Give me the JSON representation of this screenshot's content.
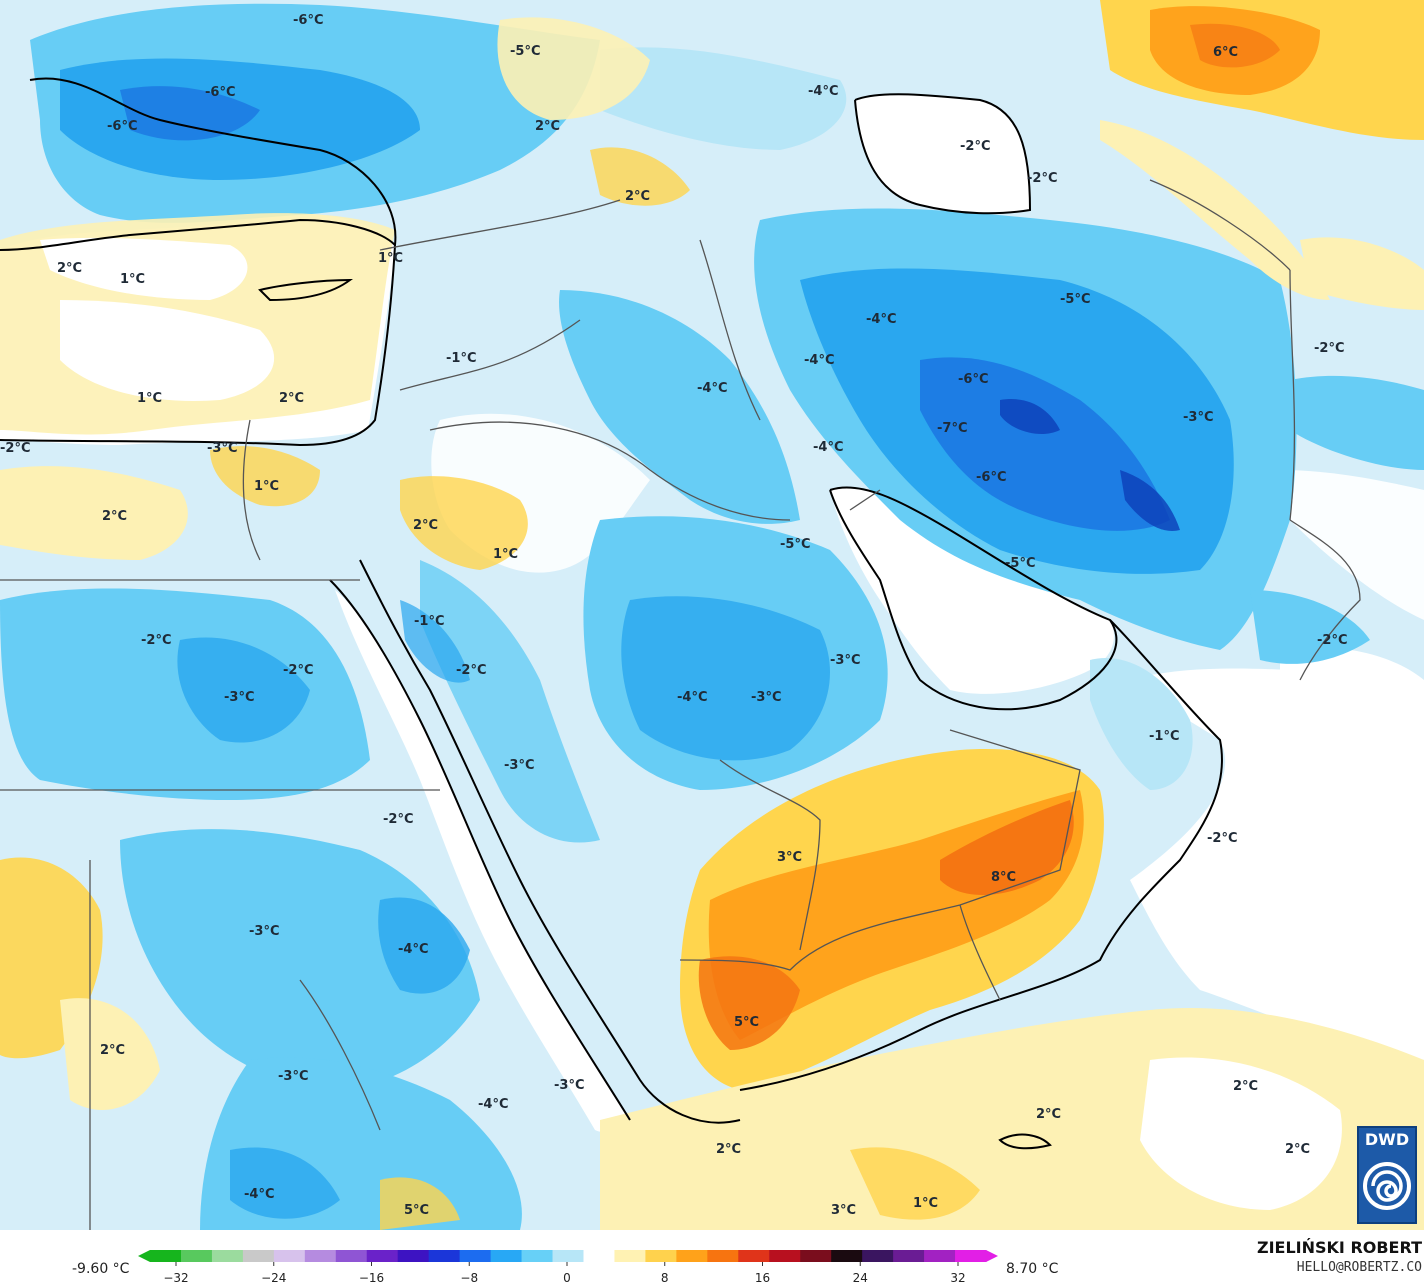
{
  "map": {
    "labels": [
      {
        "text": "-6°C"
      },
      {
        "text": "-5°C"
      },
      {
        "text": "-6°C"
      },
      {
        "text": "-6°C"
      },
      {
        "text": "2°C"
      },
      {
        "text": "2°C"
      },
      {
        "text": "-4°C"
      },
      {
        "text": "-2°C"
      },
      {
        "text": "-2°C"
      },
      {
        "text": "6°C"
      },
      {
        "text": "2°C"
      },
      {
        "text": "1°C"
      },
      {
        "text": "1°C"
      },
      {
        "text": "-1°C"
      },
      {
        "text": "1°C"
      },
      {
        "text": "2°C"
      },
      {
        "text": "-5°C"
      },
      {
        "text": "-4°C"
      },
      {
        "text": "-4°C"
      },
      {
        "text": "-6°C"
      },
      {
        "text": "-2°C"
      },
      {
        "text": "-2°C"
      },
      {
        "text": "-4°C"
      },
      {
        "text": "-3°C"
      },
      {
        "text": "-7°C"
      },
      {
        "text": "-4°C"
      },
      {
        "text": "-3°C"
      },
      {
        "text": "1°C"
      },
      {
        "text": "-6°C"
      },
      {
        "text": "2°C"
      },
      {
        "text": "2°C"
      },
      {
        "text": "1°C"
      },
      {
        "text": "-5°C"
      },
      {
        "text": "-5°C"
      },
      {
        "text": "-1°C"
      },
      {
        "text": "-2°C"
      },
      {
        "text": "-2°C"
      },
      {
        "text": "-2°C"
      },
      {
        "text": "-3°C"
      },
      {
        "text": "-2°C"
      },
      {
        "text": "-4°C"
      },
      {
        "text": "-3°C"
      },
      {
        "text": "-3°C"
      },
      {
        "text": "-1°C"
      },
      {
        "text": "-3°C"
      },
      {
        "text": "-2°C"
      },
      {
        "text": "-2°C"
      },
      {
        "text": "3°C"
      },
      {
        "text": "8°C"
      },
      {
        "text": "-3°C"
      },
      {
        "text": "-4°C"
      },
      {
        "text": "5°C"
      },
      {
        "text": "2°C"
      },
      {
        "text": "-3°C"
      },
      {
        "text": "-3°C"
      },
      {
        "text": "-4°C"
      },
      {
        "text": "2°C"
      },
      {
        "text": "2°C"
      },
      {
        "text": "2°C"
      },
      {
        "text": "2°C"
      },
      {
        "text": "-4°C"
      },
      {
        "text": "5°C"
      },
      {
        "text": "3°C"
      },
      {
        "text": "1°C"
      }
    ]
  },
  "legend": {
    "min_value": "-9.60 °C",
    "max_value": "8.70 °C",
    "ticks": [
      "−32",
      "−24",
      "−16",
      "−8",
      "0",
      "8",
      "16",
      "24",
      "32"
    ],
    "colors": [
      "#16b51d",
      "#58c95e",
      "#9bdb9e",
      "#c9c9c9",
      "#d7c2ec",
      "#b58be0",
      "#8f55d4",
      "#6a22c9",
      "#3d13c2",
      "#1b36d9",
      "#1c6cf0",
      "#28a8f5",
      "#67d0f7",
      "#b7e6f7",
      "#ffffff",
      "#fff2b3",
      "#ffd24d",
      "#ffa21a",
      "#f77410",
      "#e0341a",
      "#b8101f",
      "#7a0d1d",
      "#1a0a10",
      "#3a1560",
      "#6a1c94",
      "#a222c2",
      "#e21fe6"
    ]
  },
  "footer": {
    "author": "ZIELIŃSKI ROBERT",
    "email": "HELLO@ROBERTZ.CO"
  },
  "logo": {
    "text": "DWD"
  },
  "colors": {
    "sea_neutral": "#ffffff",
    "land_light_blue": "#d4eef9",
    "blue_mid": "#67cdf5",
    "blue_strong": "#2aa7ef",
    "blue_deep": "#1a6fe0",
    "yellow_light": "#fdf1b4",
    "yellow": "#ffd54d",
    "orange": "#ffa31c",
    "orange_deep": "#f57612",
    "border_line": "#555555",
    "coast_line": "#000000"
  }
}
